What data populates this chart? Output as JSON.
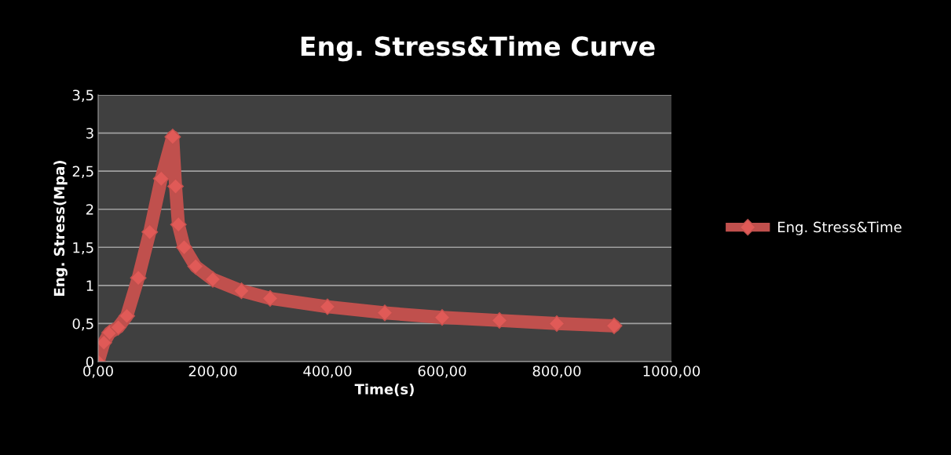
{
  "chart_data": {
    "type": "line",
    "title": "Eng. Stress&Time Curve",
    "xlabel": "Time(s)",
    "ylabel": "Eng. Stress(Mpa)",
    "x": [
      0,
      10,
      20,
      35,
      50,
      70,
      90,
      110,
      130,
      135,
      140,
      150,
      170,
      200,
      250,
      300,
      400,
      500,
      600,
      700,
      800,
      900
    ],
    "series": [
      {
        "name": "Eng. Stress&Time",
        "color": "#c0504d",
        "values": [
          0,
          0.25,
          0.38,
          0.45,
          0.6,
          1.1,
          1.7,
          2.4,
          2.95,
          2.3,
          1.8,
          1.5,
          1.25,
          1.08,
          0.93,
          0.83,
          0.72,
          0.64,
          0.58,
          0.54,
          0.5,
          0.47
        ]
      }
    ],
    "xlim": [
      0,
      1000
    ],
    "ylim": [
      0,
      3.5
    ],
    "xticks": [
      {
        "value": 0,
        "label": "0,00"
      },
      {
        "value": 200,
        "label": "200,00"
      },
      {
        "value": 400,
        "label": "400,00"
      },
      {
        "value": 600,
        "label": "600,00"
      },
      {
        "value": 800,
        "label": "800,00"
      },
      {
        "value": 1000,
        "label": "1000,00"
      }
    ],
    "yticks": [
      0,
      {
        "value": 0.5,
        "label": "0,5"
      },
      1,
      {
        "value": 1.5,
        "label": "1,5"
      },
      2,
      {
        "value": 2.5,
        "label": "2,5"
      },
      3,
      {
        "value": 3.5,
        "label": "3,5"
      }
    ],
    "grid": "y",
    "legend": "right",
    "marker": "diamond",
    "line_style": "solid"
  }
}
